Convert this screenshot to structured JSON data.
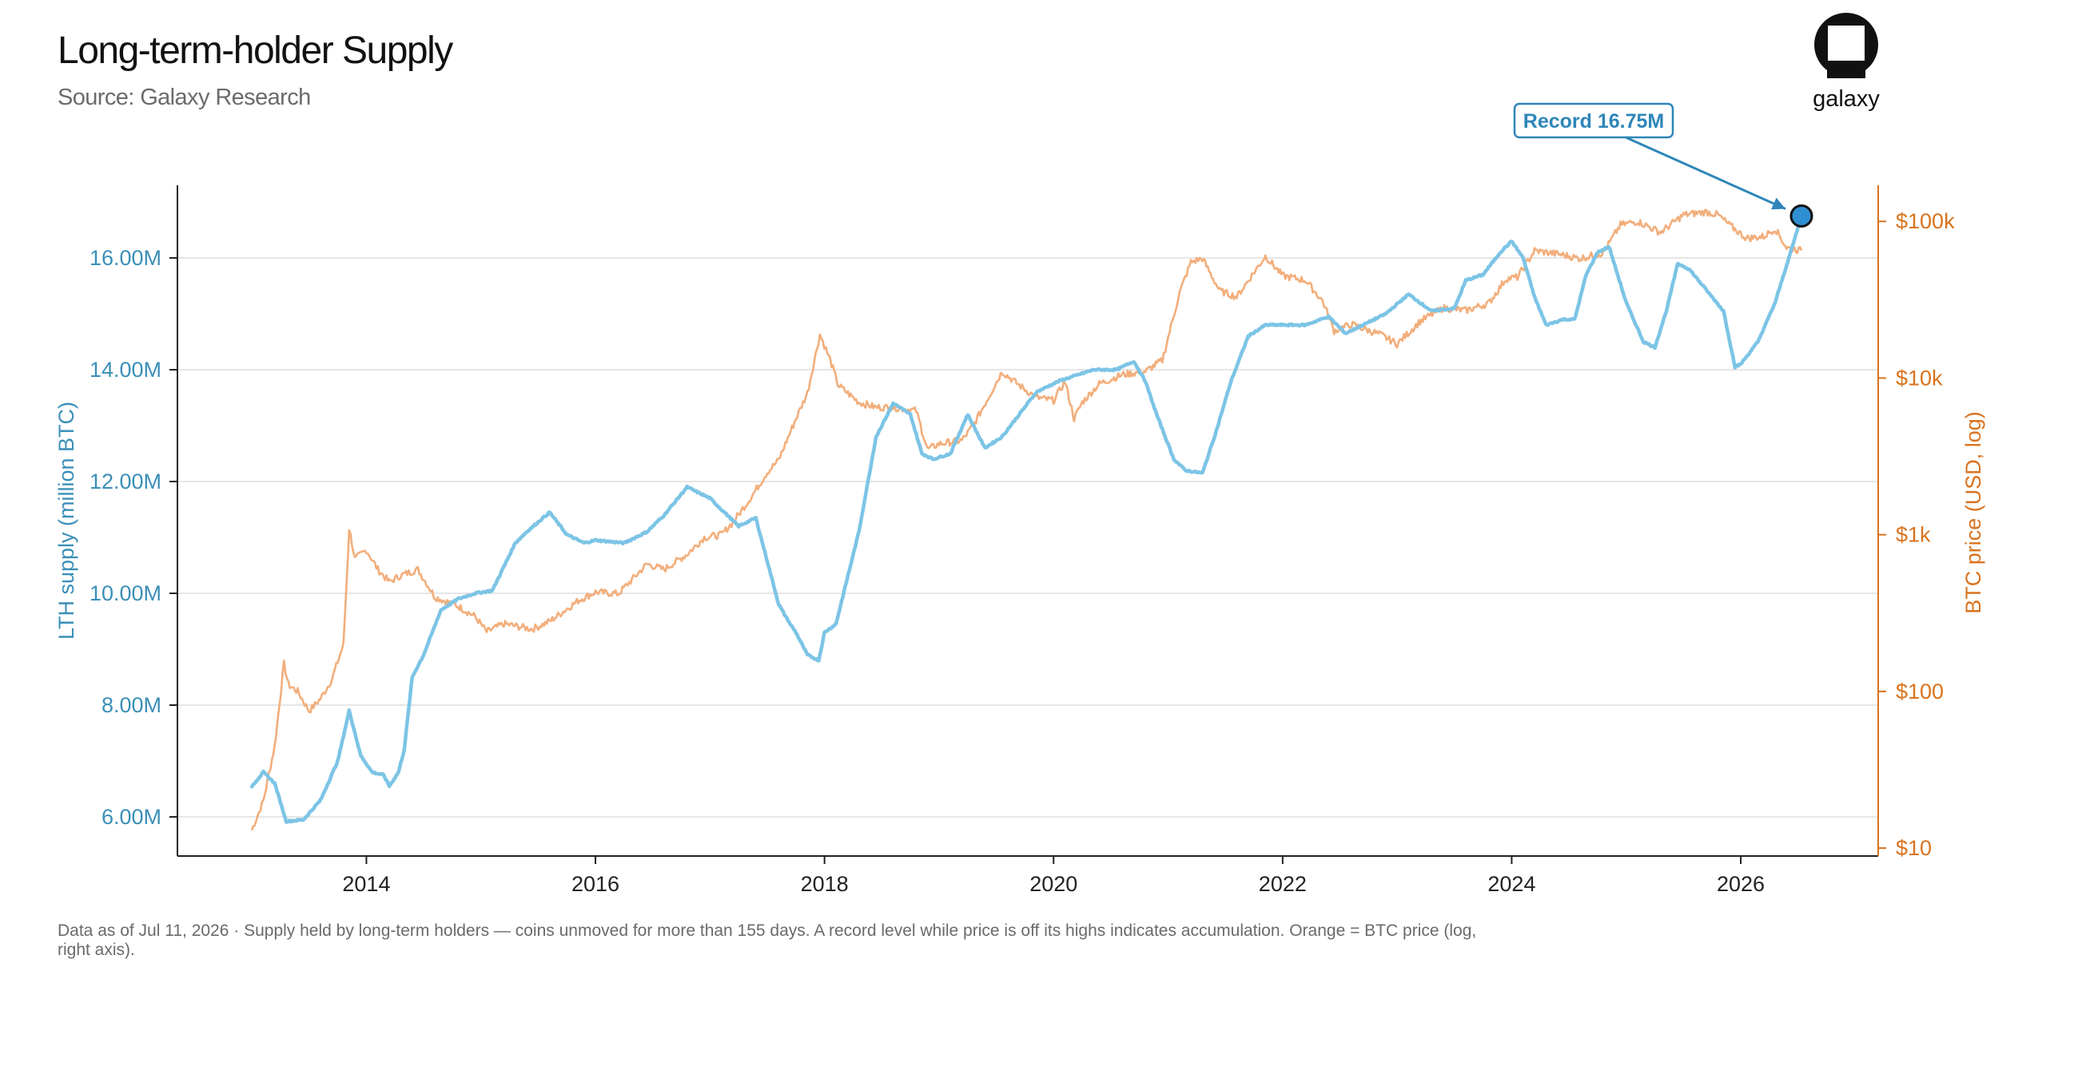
{
  "header": {
    "title": "Long-term-holder Supply",
    "subtitle": "Source: Galaxy Research"
  },
  "logo": {
    "text": "galaxy",
    "icon": "galaxy-logo-icon"
  },
  "footnote": "Data as of Jul 11, 2026 · Supply held by long-term holders — coins unmoved for more than 155 days. A record level while price is off its highs indicates accumulation. Orange = BTC price (log, right axis).",
  "colors": {
    "lth": "#7cc4e6",
    "price": "#f2ae7b",
    "left_axis": "#3a8fb7",
    "right_axis": "#d9731e",
    "grid": "#dddddd",
    "annotation": "#2e86b8",
    "marker_fill": "#2f8fd0"
  },
  "chart_data": {
    "type": "line",
    "title": "Long-term-holder Supply",
    "xlabel": "",
    "x_ticks": [
      "2014",
      "2016",
      "2018",
      "2020",
      "2022",
      "2024",
      "2026"
    ],
    "xlim": [
      2012.35,
      2027.2
    ],
    "grid": true,
    "legend": "none",
    "axes": {
      "left": {
        "label": "LTH supply (million BTC)",
        "scale": "linear",
        "ylim": [
          5.3,
          17.3
        ],
        "ticks": [
          6,
          8,
          10,
          12,
          14,
          16
        ],
        "tick_labels": [
          "6.00M",
          "8.00M",
          "10.00M",
          "12.00M",
          "14.00M",
          "16.00M"
        ]
      },
      "right": {
        "label": "BTC price (USD, log)",
        "scale": "log",
        "ylim": [
          8.9,
          170000
        ],
        "ticks": [
          10,
          100,
          1000,
          10000,
          100000
        ],
        "tick_labels": [
          "$10",
          "$100",
          "$1k",
          "$10k",
          "$100k"
        ]
      }
    },
    "series": [
      {
        "axis": "left",
        "x": [
          2013.0,
          2013.1,
          2013.2,
          2013.3,
          2013.45,
          2013.6,
          2013.75,
          2013.85,
          2013.95,
          2014.05,
          2014.15,
          2014.2,
          2014.28,
          2014.33,
          2014.4,
          2014.5,
          2014.65,
          2014.8,
          2014.95,
          2015.1,
          2015.3,
          2015.4,
          2015.6,
          2015.75,
          2015.9,
          2016.0,
          2016.25,
          2016.45,
          2016.6,
          2016.8,
          2017.0,
          2017.25,
          2017.4,
          2017.6,
          2017.7,
          2017.75,
          2017.85,
          2017.95,
          2018.0,
          2018.1,
          2018.3,
          2018.45,
          2018.6,
          2018.75,
          2018.85,
          2018.95,
          2019.1,
          2019.25,
          2019.4,
          2019.55,
          2019.7,
          2019.85,
          2019.95,
          2020.05,
          2020.2,
          2020.35,
          2020.55,
          2020.7,
          2020.8,
          2020.9,
          2021.05,
          2021.15,
          2021.3,
          2021.42,
          2021.55,
          2021.7,
          2021.85,
          2022.0,
          2022.2,
          2022.4,
          2022.55,
          2022.7,
          2022.9,
          2023.1,
          2023.3,
          2023.5,
          2023.6,
          2023.75,
          2023.9,
          2024.0,
          2024.1,
          2024.2,
          2024.3,
          2024.45,
          2024.55,
          2024.65,
          2024.75,
          2024.85,
          2025.0,
          2025.15,
          2025.25,
          2025.35,
          2025.45,
          2025.55,
          2025.75,
          2025.85,
          2025.95,
          2026.0,
          2026.15,
          2026.3,
          2026.45,
          2026.53
        ],
        "values": [
          6.55,
          6.8,
          6.6,
          5.92,
          5.95,
          6.3,
          7.0,
          7.9,
          7.1,
          6.8,
          6.75,
          6.55,
          6.8,
          7.2,
          8.5,
          8.9,
          9.7,
          9.9,
          10.0,
          10.05,
          10.9,
          11.1,
          11.45,
          11.05,
          10.9,
          10.95,
          10.9,
          11.1,
          11.4,
          11.9,
          11.7,
          11.2,
          11.35,
          9.8,
          9.45,
          9.3,
          8.9,
          8.8,
          9.3,
          9.45,
          11.1,
          12.8,
          13.4,
          13.2,
          12.5,
          12.4,
          12.5,
          13.2,
          12.6,
          12.8,
          13.2,
          13.6,
          13.7,
          13.8,
          13.9,
          14.0,
          14.0,
          14.15,
          13.8,
          13.2,
          12.4,
          12.2,
          12.15,
          12.9,
          13.8,
          14.6,
          14.8,
          14.8,
          14.8,
          14.95,
          14.65,
          14.8,
          15.0,
          15.35,
          15.05,
          15.1,
          15.6,
          15.7,
          16.1,
          16.3,
          16.0,
          15.3,
          14.8,
          14.9,
          14.9,
          15.7,
          16.1,
          16.2,
          15.2,
          14.5,
          14.4,
          15.05,
          15.9,
          15.8,
          15.3,
          15.05,
          14.05,
          14.1,
          14.5,
          15.2,
          16.2,
          16.75
        ]
      },
      {
        "axis": "right",
        "x": [
          2013.0,
          2013.1,
          2013.2,
          2013.28,
          2013.32,
          2013.4,
          2013.5,
          2013.6,
          2013.7,
          2013.8,
          2013.85,
          2013.9,
          2014.0,
          2014.1,
          2014.2,
          2014.3,
          2014.45,
          2014.6,
          2014.8,
          2014.95,
          2015.05,
          2015.2,
          2015.45,
          2015.6,
          2015.85,
          2016.0,
          2016.2,
          2016.45,
          2016.6,
          2016.8,
          2016.95,
          2017.1,
          2017.2,
          2017.35,
          2017.5,
          2017.6,
          2017.75,
          2017.85,
          2017.96,
          2018.05,
          2018.12,
          2018.3,
          2018.45,
          2018.6,
          2018.8,
          2018.9,
          2019.0,
          2019.2,
          2019.3,
          2019.45,
          2019.55,
          2019.7,
          2019.85,
          2020.0,
          2020.1,
          2020.18,
          2020.25,
          2020.4,
          2020.6,
          2020.8,
          2020.95,
          2021.1,
          2021.2,
          2021.3,
          2021.45,
          2021.6,
          2021.85,
          2022.0,
          2022.2,
          2022.35,
          2022.45,
          2022.6,
          2022.85,
          2023.0,
          2023.2,
          2023.4,
          2023.6,
          2023.8,
          2023.95,
          2024.05,
          2024.2,
          2024.4,
          2024.6,
          2024.8,
          2024.95,
          2025.1,
          2025.3,
          2025.5,
          2025.7,
          2025.8,
          2025.9,
          2026.05,
          2026.2,
          2026.3,
          2026.4,
          2026.53
        ],
        "values": [
          13,
          20,
          45,
          150,
          110,
          100,
          75,
          90,
          120,
          200,
          1100,
          700,
          800,
          600,
          500,
          550,
          600,
          400,
          350,
          300,
          240,
          270,
          250,
          280,
          380,
          430,
          420,
          650,
          600,
          750,
          960,
          1000,
          1200,
          1700,
          2500,
          3000,
          5500,
          8000,
          19000,
          13000,
          9000,
          7000,
          6500,
          6500,
          6200,
          3500,
          3800,
          4000,
          5000,
          8000,
          11000,
          9000,
          7500,
          7200,
          9500,
          5500,
          7000,
          9200,
          10500,
          11000,
          13000,
          35000,
          55000,
          58000,
          36000,
          33000,
          60000,
          45000,
          42000,
          31000,
          20000,
          22000,
          19000,
          16500,
          23000,
          28000,
          27000,
          30000,
          43000,
          44000,
          65000,
          62000,
          58000,
          63000,
          95000,
          100000,
          85000,
          110000,
          115000,
          110000,
          95000,
          78000,
          80000,
          90000,
          68000,
          65000
        ]
      }
    ],
    "annotations": [
      {
        "text": "Record 16.75M",
        "x": 2026.53,
        "y": 16.75,
        "axis": "left"
      }
    ]
  }
}
